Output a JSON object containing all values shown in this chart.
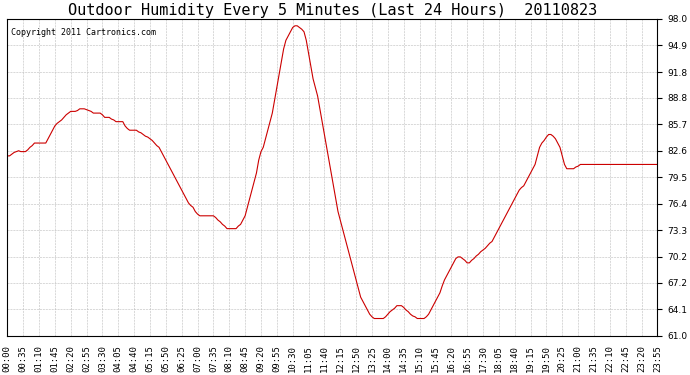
{
  "title": "Outdoor Humidity Every 5 Minutes (Last 24 Hours)  20110823",
  "copyright_text": "Copyright 2011 Cartronics.com",
  "ylim": [
    61.0,
    98.0
  ],
  "yticks": [
    61.0,
    64.1,
    67.2,
    70.2,
    73.3,
    76.4,
    79.5,
    82.6,
    85.7,
    88.8,
    91.8,
    94.9,
    98.0
  ],
  "line_color": "#cc0000",
  "bg_color": "#ffffff",
  "grid_color": "#bbbbbb",
  "title_fontsize": 11,
  "tick_fontsize": 6.5,
  "figsize": [
    6.9,
    3.75
  ],
  "dpi": 100,
  "x_tick_labels": [
    "00:00",
    "00:35",
    "01:10",
    "01:45",
    "02:20",
    "02:55",
    "03:30",
    "04:05",
    "04:40",
    "05:15",
    "05:50",
    "06:25",
    "07:00",
    "07:35",
    "08:10",
    "08:45",
    "09:20",
    "09:55",
    "10:30",
    "11:05",
    "11:40",
    "12:15",
    "12:50",
    "13:25",
    "14:00",
    "14:35",
    "15:10",
    "15:45",
    "16:20",
    "16:55",
    "17:30",
    "18:05",
    "18:40",
    "19:15",
    "19:50",
    "20:25",
    "21:00",
    "21:35",
    "22:10",
    "22:45",
    "23:20",
    "23:55"
  ],
  "x_tick_positions_5min": [
    0,
    7,
    14,
    21,
    28,
    35,
    42,
    49,
    56,
    63,
    70,
    77,
    84,
    91,
    98,
    105,
    112,
    119,
    126,
    133,
    140,
    147,
    154,
    161,
    168,
    175,
    182,
    189,
    196,
    203,
    210,
    217,
    224,
    231,
    238,
    245,
    252,
    259,
    266,
    273,
    280,
    287
  ],
  "y_values_288": [
    82.0,
    82.0,
    82.2,
    82.4,
    82.5,
    82.6,
    82.5,
    82.5,
    82.5,
    82.7,
    83.0,
    83.2,
    83.5,
    83.5,
    83.5,
    83.5,
    83.5,
    83.5,
    84.0,
    84.5,
    85.0,
    85.5,
    85.8,
    86.0,
    86.2,
    86.5,
    86.8,
    87.0,
    87.2,
    87.2,
    87.2,
    87.3,
    87.5,
    87.5,
    87.5,
    87.4,
    87.3,
    87.2,
    87.0,
    87.0,
    87.0,
    87.0,
    86.8,
    86.5,
    86.5,
    86.5,
    86.3,
    86.2,
    86.0,
    86.0,
    86.0,
    86.0,
    85.5,
    85.2,
    85.0,
    85.0,
    85.0,
    85.0,
    84.8,
    84.7,
    84.5,
    84.3,
    84.2,
    84.0,
    83.8,
    83.5,
    83.2,
    83.0,
    82.5,
    82.0,
    81.5,
    81.0,
    80.5,
    80.0,
    79.5,
    79.0,
    78.5,
    78.0,
    77.5,
    77.0,
    76.5,
    76.2,
    76.0,
    75.5,
    75.2,
    75.0,
    75.0,
    75.0,
    75.0,
    75.0,
    75.0,
    75.0,
    74.8,
    74.5,
    74.3,
    74.0,
    73.8,
    73.5,
    73.5,
    73.5,
    73.5,
    73.5,
    73.8,
    74.0,
    74.5,
    75.0,
    76.0,
    77.0,
    78.0,
    79.0,
    80.0,
    81.5,
    82.5,
    83.0,
    84.0,
    85.0,
    86.0,
    87.0,
    88.5,
    90.0,
    91.5,
    93.0,
    94.5,
    95.5,
    96.0,
    96.5,
    97.0,
    97.2,
    97.2,
    97.0,
    96.8,
    96.5,
    95.5,
    94.0,
    92.5,
    91.0,
    90.0,
    89.0,
    87.5,
    86.0,
    84.5,
    83.0,
    81.5,
    80.0,
    78.5,
    77.0,
    75.5,
    74.5,
    73.5,
    72.5,
    71.5,
    70.5,
    69.5,
    68.5,
    67.5,
    66.5,
    65.5,
    65.0,
    64.5,
    64.0,
    63.5,
    63.2,
    63.0,
    63.0,
    63.0,
    63.0,
    63.0,
    63.2,
    63.5,
    63.8,
    64.0,
    64.2,
    64.5,
    64.5,
    64.5,
    64.3,
    64.0,
    63.8,
    63.5,
    63.3,
    63.2,
    63.0,
    63.0,
    63.0,
    63.0,
    63.2,
    63.5,
    64.0,
    64.5,
    65.0,
    65.5,
    66.0,
    66.8,
    67.5,
    68.0,
    68.5,
    69.0,
    69.5,
    70.0,
    70.2,
    70.2,
    70.0,
    69.8,
    69.5,
    69.5,
    69.8,
    70.0,
    70.3,
    70.5,
    70.8,
    71.0,
    71.2,
    71.5,
    71.8,
    72.0,
    72.5,
    73.0,
    73.5,
    74.0,
    74.5,
    75.0,
    75.5,
    76.0,
    76.5,
    77.0,
    77.5,
    78.0,
    78.3,
    78.5,
    79.0,
    79.5,
    80.0,
    80.5,
    81.0,
    82.0,
    83.0,
    83.5,
    83.8,
    84.2,
    84.5,
    84.5,
    84.3,
    84.0,
    83.5,
    83.0,
    82.0,
    81.0,
    80.5,
    80.5,
    80.5,
    80.5,
    80.7,
    80.8,
    81.0,
    81.0,
    81.0,
    81.0,
    81.0,
    81.0,
    81.0,
    81.0,
    81.0,
    81.0,
    81.0,
    81.0,
    81.0,
    81.0,
    81.0,
    81.0,
    81.0,
    81.0,
    81.0,
    81.0,
    81.0,
    81.0,
    81.0,
    81.0,
    81.0,
    81.0,
    81.0,
    81.0,
    81.0,
    81.0,
    81.0,
    81.0,
    81.0,
    81.0,
    81.0
  ]
}
